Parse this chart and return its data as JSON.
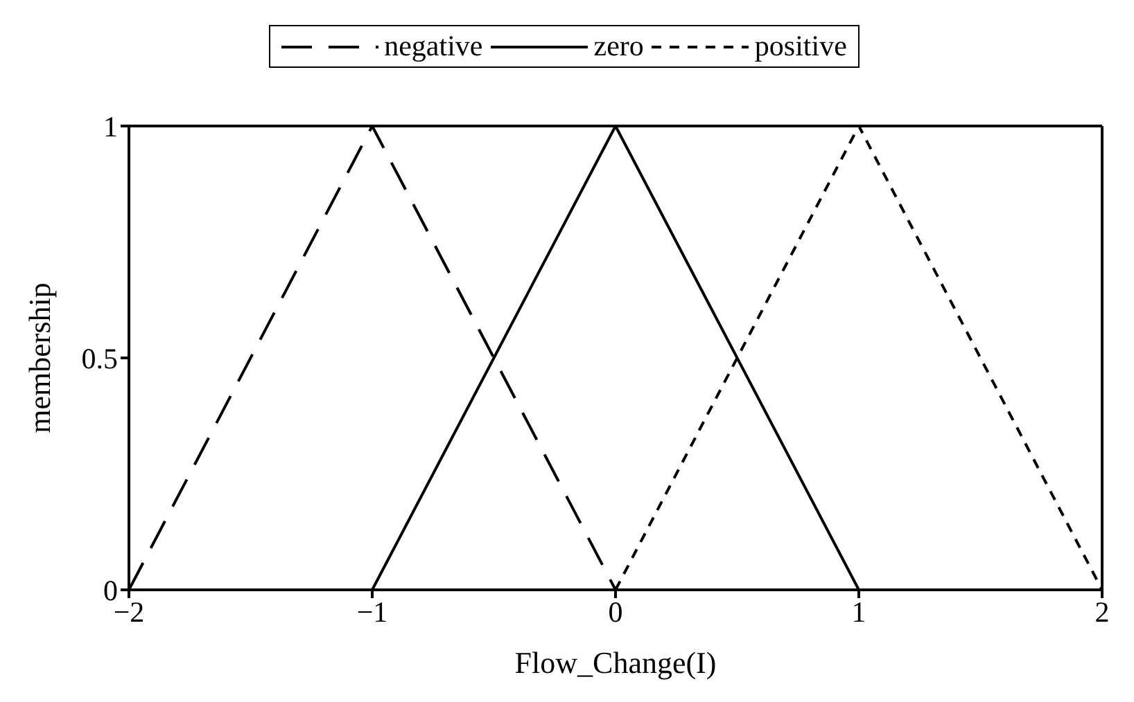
{
  "chart_data": {
    "type": "line",
    "xlabel": "Flow_Change(I)",
    "ylabel": "membership",
    "xlim": [
      -2,
      2
    ],
    "xticks": [
      {
        "value": -2,
        "label": "−2"
      },
      {
        "value": -1,
        "label": "−1"
      },
      0,
      1,
      2
    ],
    "ylim": [
      0,
      1
    ],
    "yticks": [
      0,
      0.5,
      1
    ],
    "legend": "top",
    "marker": "none",
    "series": [
      {
        "name": "negative",
        "color": "#000000",
        "line_style": "dashed",
        "x": [
          -2,
          -1,
          0
        ],
        "values": [
          0,
          1,
          0
        ]
      },
      {
        "name": "zero",
        "color": "#000000",
        "line_style": "solid",
        "x": [
          -1,
          0,
          1
        ],
        "values": [
          0,
          1,
          0
        ]
      },
      {
        "name": "positive",
        "color": "#000000",
        "line_style": "dotted",
        "x": [
          0,
          1,
          2
        ],
        "values": [
          0,
          1,
          0
        ]
      }
    ]
  }
}
